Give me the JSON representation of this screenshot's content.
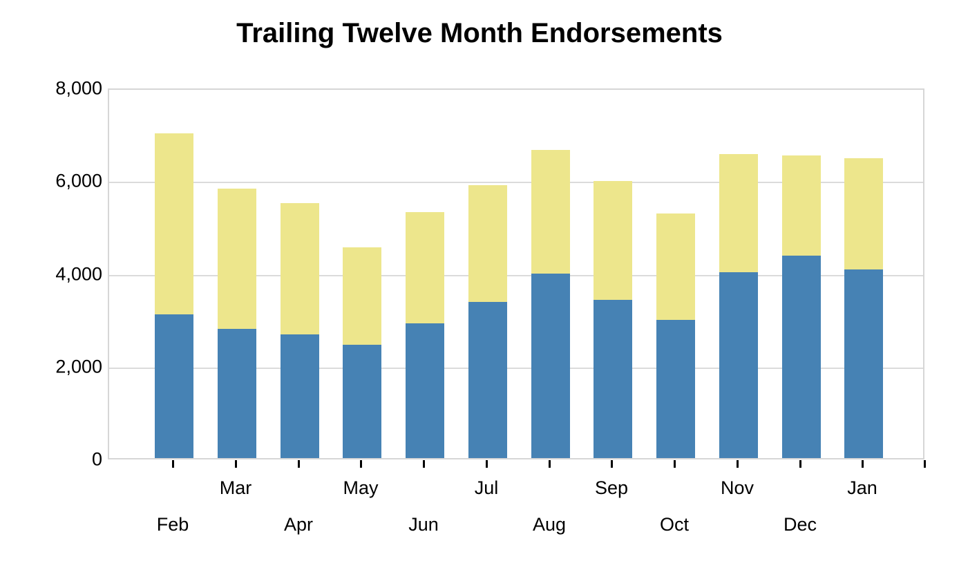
{
  "title": "Trailing Twelve Month Endorsements",
  "chart_data": {
    "type": "bar",
    "stacked": true,
    "title": "Trailing Twelve Month Endorsements",
    "xlabel": "",
    "ylabel": "",
    "categories": [
      "Feb",
      "Mar",
      "Apr",
      "May",
      "Jun",
      "Jul",
      "Aug",
      "Sep",
      "Oct",
      "Nov",
      "Dec",
      "Jan"
    ],
    "series": [
      {
        "name": "blue",
        "color": "#4682B4",
        "values": [
          3100,
          2790,
          2670,
          2450,
          2900,
          3370,
          3980,
          3410,
          2980,
          4000,
          4360,
          4060
        ]
      },
      {
        "name": "yellow",
        "color": "#EDE68C",
        "values": [
          3900,
          3020,
          2820,
          2100,
          2410,
          2510,
          2660,
          2560,
          2300,
          2550,
          2170,
          2400
        ]
      }
    ],
    "totals": [
      7000,
      5810,
      5490,
      4550,
      5310,
      5880,
      6640,
      5970,
      5280,
      6550,
      6530,
      6460
    ],
    "ylim": [
      0,
      8000
    ],
    "yticks": [
      {
        "value": 8000,
        "label": "8,000"
      },
      {
        "value": 6000,
        "label": "6,000"
      },
      {
        "value": 4000,
        "label": "4,000"
      },
      {
        "value": 2000,
        "label": "2,000"
      },
      {
        "value": 0,
        "label": "0"
      }
    ],
    "grid": true,
    "legend": "none",
    "stagger_x_labels": true,
    "colors": {
      "gridline": "#dbdbdb",
      "axis_border": "#d6d6d6",
      "tick": "#000000",
      "text": "#000000",
      "background": "#ffffff"
    }
  }
}
